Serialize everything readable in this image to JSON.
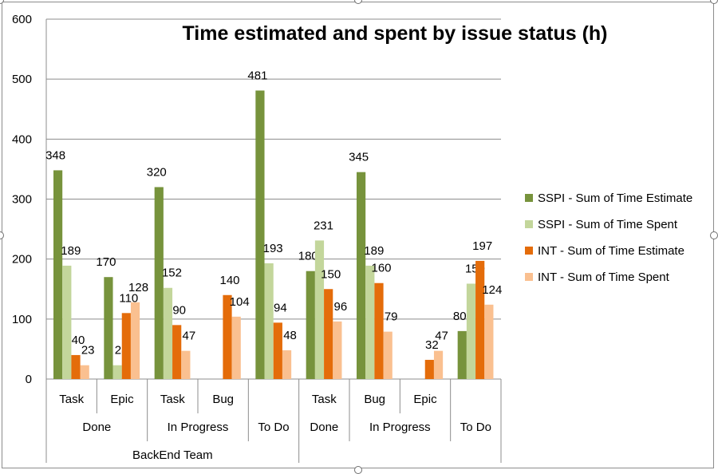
{
  "chart_data": {
    "type": "bar",
    "title": "Time estimated and spent by issue status (h)",
    "xlabel": "",
    "ylabel": "",
    "ylim": [
      0,
      600
    ],
    "yticks": [
      "0",
      "100",
      "200",
      "300",
      "400",
      "500",
      "600"
    ],
    "gridlines": true,
    "legend_position": "right",
    "categories": [
      {
        "team": "BackEnd Team",
        "status": "Done",
        "type": "Task"
      },
      {
        "team": "BackEnd Team",
        "status": "Done",
        "type": "Epic"
      },
      {
        "team": "BackEnd Team",
        "status": "In Progress",
        "type": "Task"
      },
      {
        "team": "BackEnd Team",
        "status": "In Progress",
        "type": "Bug"
      },
      {
        "team": "BackEnd Team",
        "status": "To Do",
        "type": ""
      },
      {
        "team": "",
        "status": "Done",
        "type": "Task"
      },
      {
        "team": "",
        "status": "In Progress",
        "type": "Bug"
      },
      {
        "team": "",
        "status": "In Progress",
        "type": "Epic"
      },
      {
        "team": "",
        "status": "To Do",
        "type": ""
      }
    ],
    "level2_labels": [
      {
        "label": "Done",
        "span": [
          0,
          1
        ]
      },
      {
        "label": "In Progress",
        "span": [
          2,
          3
        ]
      },
      {
        "label": "To Do",
        "span": [
          4,
          4
        ]
      },
      {
        "label": "Done",
        "span": [
          5,
          5
        ]
      },
      {
        "label": "In Progress",
        "span": [
          6,
          7
        ]
      },
      {
        "label": "To Do",
        "span": [
          8,
          8
        ]
      }
    ],
    "level3_labels": [
      {
        "label": "BackEnd Team",
        "span": [
          0,
          4
        ]
      }
    ],
    "series": [
      {
        "name": "SSPI - Sum of Time Estimate",
        "color": "#77933c",
        "values": [
          348,
          170,
          320,
          null,
          481,
          180,
          345,
          null,
          80
        ]
      },
      {
        "name": "SSPI - Sum of Time Spent",
        "color": "#c3d69b",
        "values": [
          189,
          23,
          152,
          null,
          193,
          231,
          189,
          null,
          159
        ]
      },
      {
        "name": "INT - Sum of Time Estimate",
        "color": "#e46c0a",
        "values": [
          40,
          110,
          90,
          140,
          94,
          150,
          160,
          32,
          197
        ]
      },
      {
        "name": "INT - Sum of Time Spent",
        "color": "#fac090",
        "values": [
          23,
          128,
          47,
          104,
          48,
          96,
          79,
          47,
          124
        ]
      }
    ]
  }
}
